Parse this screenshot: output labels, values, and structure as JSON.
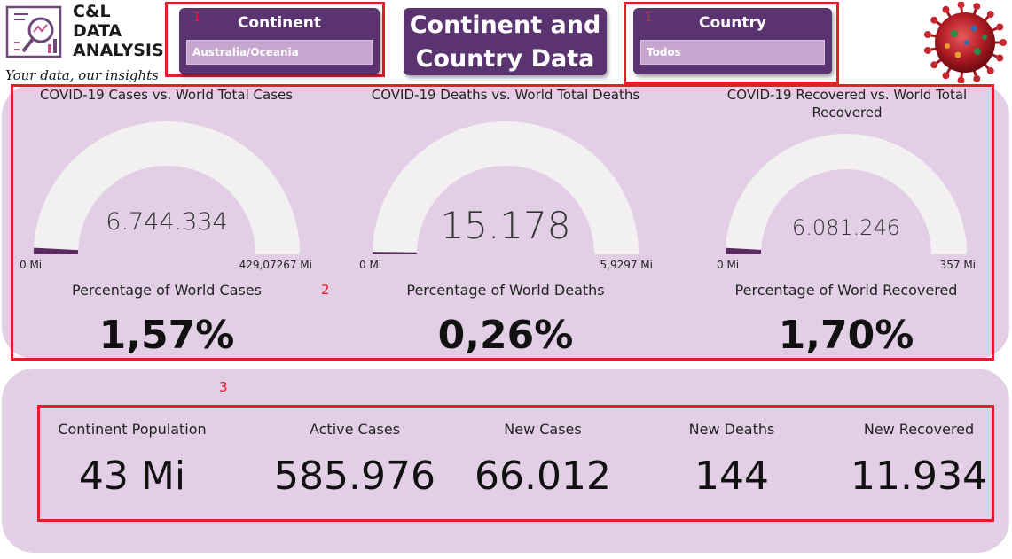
{
  "logo": {
    "brand_line1": "C&L",
    "brand_line2": "DATA",
    "brand_line3": "ANALYSIS",
    "tagline": "Your data, our insights",
    "icon": "data-analysis-logo-icon"
  },
  "continent_slicer": {
    "marker": "1",
    "title": "Continent",
    "selected": "Australia/Oceania",
    "icon": "chevron-down-icon"
  },
  "header": {
    "line1": "Continent and",
    "line2": "Country Data"
  },
  "country_slicer": {
    "marker": "1",
    "title": "Country",
    "selected": "Todos",
    "icon": "chevron-down-icon"
  },
  "virus_image": {
    "icon": "coronavirus-image"
  },
  "gauges_section": {
    "marker": "2",
    "gauges": [
      {
        "title": "COVID-19 Cases vs. World Total Cases",
        "value": "6.744.334",
        "min": "0 Mi",
        "max": "429,07267 Mi",
        "fill_fraction": 0.0157,
        "pct_label": "Percentage of World Cases",
        "pct_value": "1,57%"
      },
      {
        "title": "COVID-19 Deaths vs. World Total Deaths",
        "value": "15.178",
        "min": "0 Mi",
        "max": "5,9297 Mi",
        "fill_fraction": 0.0026,
        "pct_label": "Percentage of World Deaths",
        "pct_value": "0,26%"
      },
      {
        "title": "COVID-19 Recovered vs. World Total Recovered",
        "value": "6.081.246",
        "min": "0 Mi",
        "max": "357 Mi",
        "fill_fraction": 0.017,
        "pct_label": "Percentage of World Recovered",
        "pct_value": "1,70%"
      }
    ]
  },
  "kpi_section": {
    "marker": "3",
    "kpis": [
      {
        "label": "Continent Population",
        "value": "43 Mi"
      },
      {
        "label": "Active Cases",
        "value": "585.976"
      },
      {
        "label": "New Cases",
        "value": "66.012"
      },
      {
        "label": "New Deaths",
        "value": "144"
      },
      {
        "label": "New Recovered",
        "value": "11.934"
      }
    ]
  },
  "colors": {
    "accent": "#5a3370",
    "panel": "#e2cfe6",
    "gauge_track": "#f2f0f1",
    "gauge_fill": "#5e2a63",
    "highlight": "#e0202a"
  }
}
